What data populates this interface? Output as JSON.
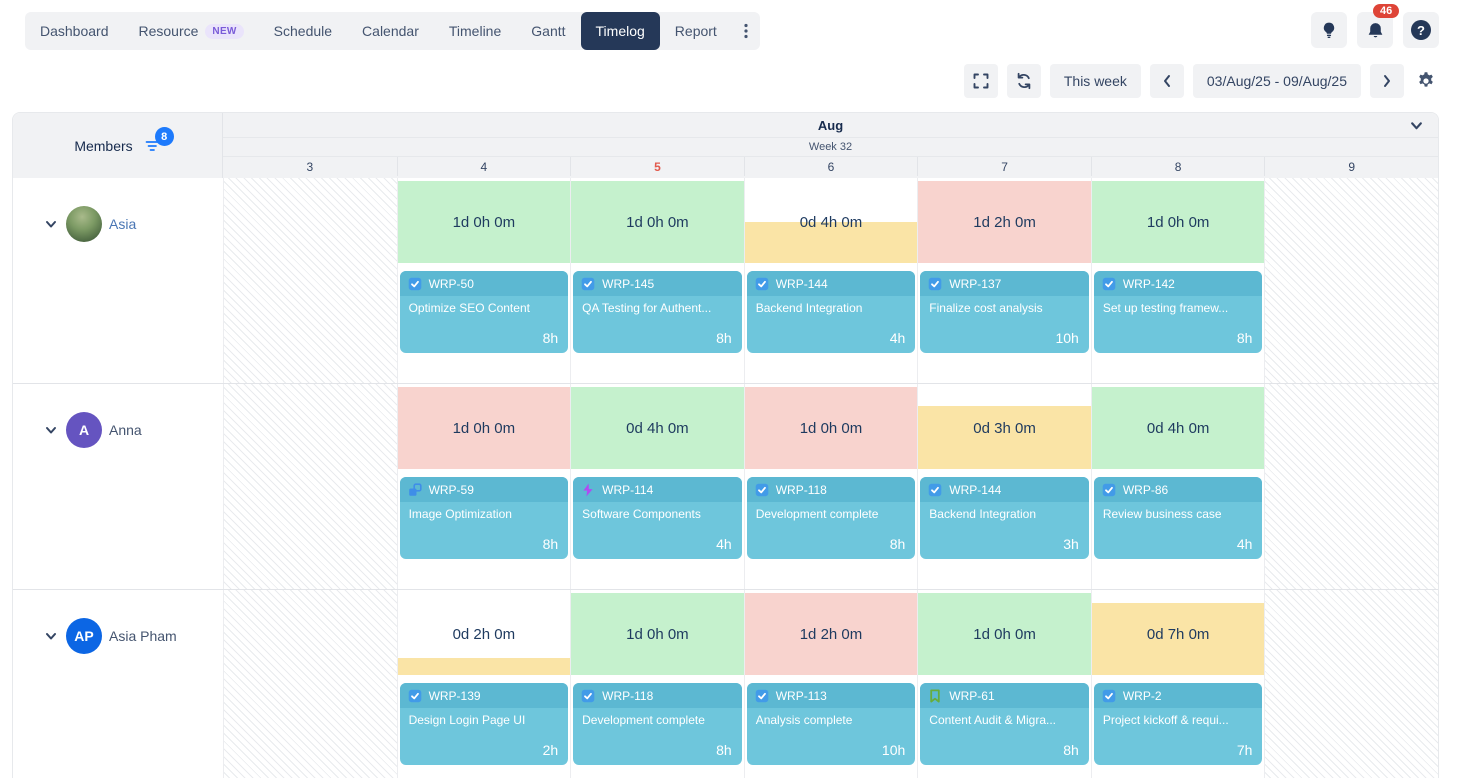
{
  "nav": {
    "tabs": [
      {
        "label": "Dashboard"
      },
      {
        "label": "Resource",
        "badge": "NEW"
      },
      {
        "label": "Schedule"
      },
      {
        "label": "Calendar"
      },
      {
        "label": "Timeline"
      },
      {
        "label": "Gantt"
      },
      {
        "label": "Timelog",
        "active": true
      },
      {
        "label": "Report"
      }
    ]
  },
  "topbar_icons": {
    "notification_count": "46",
    "help_label": "?"
  },
  "toolbar": {
    "this_week": "This week",
    "date_range": "03/Aug/25 - 09/Aug/25"
  },
  "grid": {
    "members_label": "Members",
    "filter_count": "8",
    "month": "Aug",
    "week": "Week 32",
    "days": [
      {
        "num": "3",
        "work": false
      },
      {
        "num": "4",
        "work": true
      },
      {
        "num": "5",
        "work": true,
        "today": true
      },
      {
        "num": "6",
        "work": true
      },
      {
        "num": "7",
        "work": true
      },
      {
        "num": "8",
        "work": true
      },
      {
        "num": "9",
        "work": false
      }
    ],
    "members": [
      {
        "name": "Asia",
        "name_color": "#4A76B4",
        "avatar": {
          "kind": "photo"
        },
        "cells": [
          {
            "total": "1d 0h 0m",
            "color": "green",
            "fill": 100,
            "task": {
              "key": "WRP-50",
              "title": "Optimize SEO Content",
              "hours": "8h",
              "type": "task"
            }
          },
          {
            "total": "1d 0h 0m",
            "color": "green",
            "fill": 100,
            "task": {
              "key": "WRP-145",
              "title": "QA Testing for Authent...",
              "hours": "8h",
              "type": "task"
            }
          },
          {
            "total": "0d 4h 0m",
            "color": "yellow",
            "fill": 50,
            "task": {
              "key": "WRP-144",
              "title": "Backend Integration",
              "hours": "4h",
              "type": "task"
            }
          },
          {
            "total": "1d 2h 0m",
            "color": "red",
            "fill": 100,
            "task": {
              "key": "WRP-137",
              "title": "Finalize cost analysis",
              "hours": "10h",
              "type": "task"
            }
          },
          {
            "total": "1d 0h 0m",
            "color": "green",
            "fill": 100,
            "task": {
              "key": "WRP-142",
              "title": "Set up testing framew...",
              "hours": "8h",
              "type": "task"
            }
          }
        ]
      },
      {
        "name": "Anna",
        "name_color": "#44546F",
        "avatar": {
          "kind": "initials",
          "text": "A",
          "bg": "#6554C0"
        },
        "cells": [
          {
            "total": "1d 0h 0m",
            "color": "red",
            "fill": 100,
            "task": {
              "key": "WRP-59",
              "title": "Image Optimization",
              "hours": "8h",
              "type": "subtask"
            }
          },
          {
            "total": "0d 4h 0m",
            "color": "green",
            "fill": 100,
            "task": {
              "key": "WRP-114",
              "title": "Software Components",
              "hours": "4h",
              "type": "epic"
            }
          },
          {
            "total": "1d 0h 0m",
            "color": "red",
            "fill": 100,
            "task": {
              "key": "WRP-118",
              "title": "Development complete",
              "hours": "8h",
              "type": "task"
            }
          },
          {
            "total": "0d 3h 0m",
            "color": "yellow",
            "fill": 77,
            "task": {
              "key": "WRP-144",
              "title": "Backend Integration",
              "hours": "3h",
              "type": "task"
            }
          },
          {
            "total": "0d 4h 0m",
            "color": "green",
            "fill": 100,
            "task": {
              "key": "WRP-86",
              "title": "Review business case",
              "hours": "4h",
              "type": "task"
            }
          }
        ]
      },
      {
        "name": "Asia Pham",
        "name_color": "#44546F",
        "avatar": {
          "kind": "initials",
          "text": "AP",
          "bg": "#0C66E4"
        },
        "cells": [
          {
            "total": "0d 2h 0m",
            "color": "yellow",
            "fill": 21,
            "task": {
              "key": "WRP-139",
              "title": "Design Login Page UI",
              "hours": "2h",
              "type": "task"
            }
          },
          {
            "total": "1d 0h 0m",
            "color": "green",
            "fill": 100,
            "task": {
              "key": "WRP-118",
              "title": "Development complete",
              "hours": "8h",
              "type": "task"
            }
          },
          {
            "total": "1d 2h 0m",
            "color": "red",
            "fill": 100,
            "task": {
              "key": "WRP-113",
              "title": "Analysis complete",
              "hours": "10h",
              "type": "task"
            }
          },
          {
            "total": "1d 0h 0m",
            "color": "green",
            "fill": 100,
            "task": {
              "key": "WRP-61",
              "title": "Content Audit & Migra...",
              "hours": "8h",
              "type": "story"
            }
          },
          {
            "total": "0d 7h 0m",
            "color": "yellow",
            "fill": 88,
            "task": {
              "key": "WRP-2",
              "title": "Project kickoff & requi...",
              "hours": "7h",
              "type": "task"
            }
          }
        ]
      }
    ]
  },
  "colors": {
    "green": "#C5F1CD",
    "red": "#F8D3CE",
    "yellow": "#FAE4A6",
    "card": "#6EC6DC",
    "card_header": "#5CB8D2",
    "accent_blue": "#1D7AFC",
    "today_red": "#E25A4D"
  }
}
